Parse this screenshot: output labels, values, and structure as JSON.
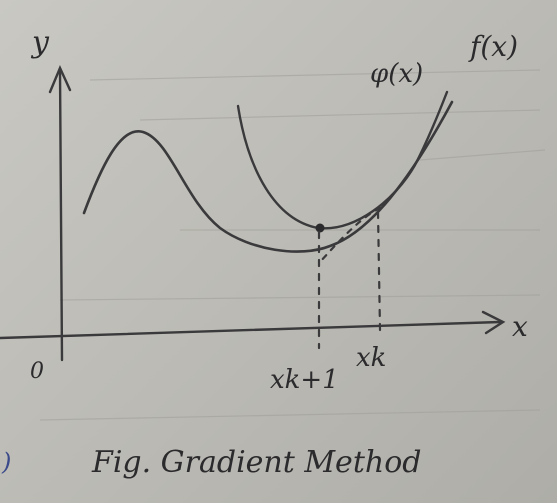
{
  "labels": {
    "y_axis": "y",
    "x_axis": "x",
    "origin": "0",
    "f_curve": "f(x)",
    "phi_curve": "φ(x)",
    "x_k": "xk",
    "x_k_plus_1": "xk+1",
    "caption": "Fig. Gradient Method",
    "margin_mark": ")"
  },
  "colors": {
    "ink": "#3a393b",
    "paper": "#c4c3bd"
  }
}
